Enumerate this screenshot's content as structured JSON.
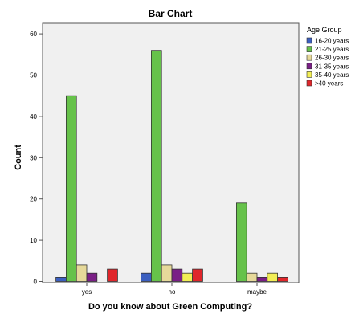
{
  "chart_data": {
    "type": "bar",
    "title": "Bar Chart",
    "xlabel": "Do you know about Green Computing?",
    "ylabel": "Count",
    "categories": [
      "yes",
      "no",
      "maybe"
    ],
    "ylim": [
      0,
      62
    ],
    "yticks": [
      0,
      10,
      20,
      30,
      40,
      50,
      60
    ],
    "grid": false,
    "legend_title": "Age Group",
    "legend_position": "right",
    "series": [
      {
        "name": "16-20 years",
        "color": "#3b5fc0",
        "values": [
          1,
          2,
          0
        ]
      },
      {
        "name": "21-25 years",
        "color": "#66c24a",
        "values": [
          45,
          56,
          19
        ]
      },
      {
        "name": "26-30 years",
        "color": "#e6d99a",
        "values": [
          4,
          4,
          2
        ]
      },
      {
        "name": "31-35 years",
        "color": "#7a1f86",
        "values": [
          2,
          3,
          1
        ]
      },
      {
        "name": "35-40 years",
        "color": "#f2ee55",
        "values": [
          0,
          2,
          2
        ]
      },
      {
        "name": ">40 years",
        "color": "#e0262b",
        "values": [
          3,
          3,
          1
        ]
      }
    ]
  }
}
